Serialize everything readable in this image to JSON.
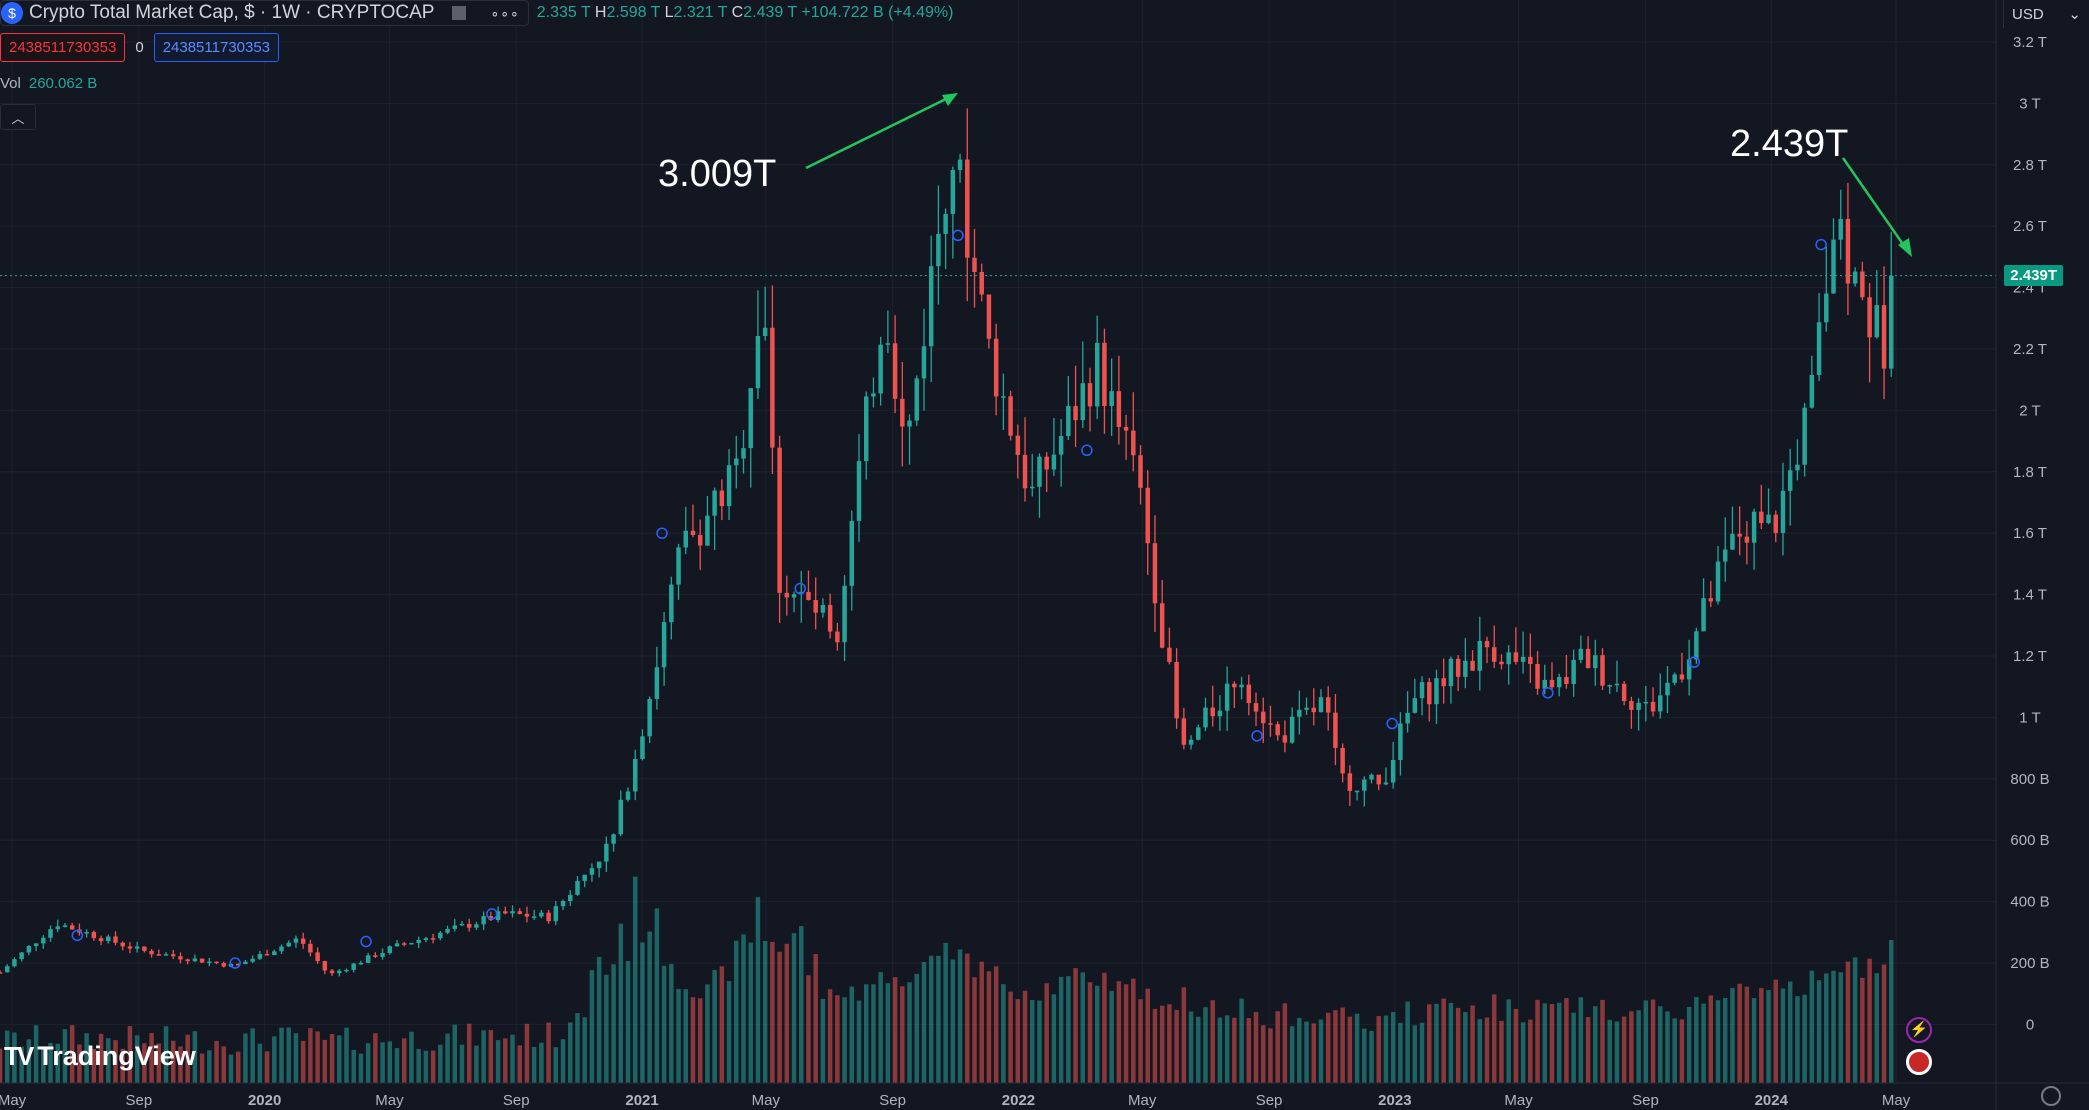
{
  "header": {
    "symbol_title": "Crypto Total Market Cap, $ · 1W · CRYPTOCAP",
    "coin_icon": "dollar-coin-icon",
    "ohlc": {
      "open": "2.335 T",
      "high": "2.598 T",
      "low": "2.321 T",
      "close": "2.439 T",
      "change": "+104.722 B (+4.49%)"
    }
  },
  "trade": {
    "sell_price": "2438511730353",
    "spread": "0",
    "buy_price": "2438511730353"
  },
  "volume_label": {
    "label": "Vol",
    "value": "260.062 B"
  },
  "currency": {
    "label": "USD"
  },
  "current_price_tag": "2.439T",
  "annotations": {
    "peak_label": "3.009T",
    "current_label": "2.439T"
  },
  "logo": {
    "text": "TradingView"
  },
  "colors": {
    "up": "#26a69a",
    "down": "#ef5350",
    "arrow": "#22c55e",
    "background": "#131722",
    "grid": "#1e222d"
  },
  "chart_data": {
    "type": "candlestick",
    "x_axis_labels": [
      "May",
      "Sep",
      "2020",
      "May",
      "Sep",
      "2021",
      "May",
      "Sep",
      "2022",
      "May",
      "Sep",
      "2023",
      "May",
      "Sep",
      "2024",
      "May"
    ],
    "y_axis_labels": [
      "3.2 T",
      "3 T",
      "2.8 T",
      "2.6 T",
      "2.4 T",
      "2.2 T",
      "2 T",
      "1.8 T",
      "1.6 T",
      "1.4 T",
      "1.2 T",
      "1 T",
      "800 B",
      "600 B",
      "400 B",
      "200 B",
      "0"
    ],
    "y_range_T": [
      -0.1,
      3.2
    ],
    "x_range": [
      "2019-05-01",
      "2024-06-01"
    ],
    "price_path_T": [
      [
        "2019-05-01",
        0.17
      ],
      [
        "2019-06-25",
        0.33
      ],
      [
        "2019-09-15",
        0.24
      ],
      [
        "2019-12-15",
        0.19
      ],
      [
        "2020-02-15",
        0.28
      ],
      [
        "2020-03-15",
        0.16
      ],
      [
        "2020-05-15",
        0.25
      ],
      [
        "2020-09-01",
        0.36
      ],
      [
        "2020-10-15",
        0.35
      ],
      [
        "2020-12-15",
        0.6
      ],
      [
        "2021-01-15",
        1.0
      ],
      [
        "2021-02-20",
        1.55
      ],
      [
        "2021-04-15",
        1.8
      ],
      [
        "2021-05-10",
        2.42
      ],
      [
        "2021-05-25",
        1.45
      ],
      [
        "2021-07-20",
        1.28
      ],
      [
        "2021-09-05",
        2.38
      ],
      [
        "2021-09-25",
        1.85
      ],
      [
        "2021-11-08",
        2.88
      ],
      [
        "2021-12-15",
        2.2
      ],
      [
        "2022-01-25",
        1.72
      ],
      [
        "2022-03-30",
        2.15
      ],
      [
        "2022-05-10",
        1.75
      ],
      [
        "2022-06-20",
        0.88
      ],
      [
        "2022-08-15",
        1.15
      ],
      [
        "2022-09-20",
        0.93
      ],
      [
        "2022-11-05",
        1.05
      ],
      [
        "2022-11-20",
        0.8
      ],
      [
        "2022-12-30",
        0.78
      ],
      [
        "2023-01-30",
        1.05
      ],
      [
        "2023-04-15",
        1.24
      ],
      [
        "2023-06-15",
        1.08
      ],
      [
        "2023-07-15",
        1.2
      ],
      [
        "2023-09-15",
        1.02
      ],
      [
        "2023-10-20",
        1.18
      ],
      [
        "2023-12-10",
        1.6
      ],
      [
        "2024-01-15",
        1.62
      ],
      [
        "2024-02-20",
        2.02
      ],
      [
        "2024-03-12",
        2.58
      ],
      [
        "2024-03-28",
        2.45
      ],
      [
        "2024-04-20",
        2.28
      ],
      [
        "2024-05-05",
        2.2
      ],
      [
        "2024-05-13",
        2.439
      ]
    ],
    "volume_peaks_B": [
      [
        "2021-01-10",
        400
      ],
      [
        "2021-05-15",
        440
      ],
      [
        "2021-09-10",
        225
      ],
      [
        "2022-06-15",
        215
      ],
      [
        "2024-03-12",
        220
      ],
      [
        "2024-05-13",
        260
      ]
    ],
    "current_price_T": 2.439,
    "peak_price_T": 3.009,
    "legend": "none",
    "grid": true
  }
}
